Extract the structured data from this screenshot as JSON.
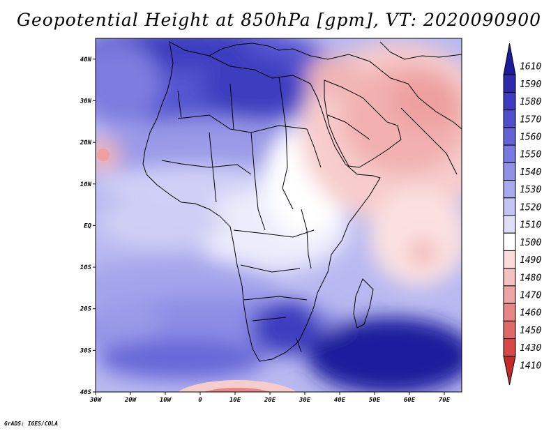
{
  "title": "Geopotential Height at 850hPa [gpm], VT: 2020090900",
  "credit": "GrADS: IGES/COLA",
  "map": {
    "lon_range": [
      -30,
      75
    ],
    "lat_range": [
      -40,
      45
    ],
    "lat_ticks": [
      "40N",
      "30N",
      "20N",
      "10N",
      "EQ",
      "10S",
      "20S",
      "30S",
      "40S"
    ],
    "lon_ticks": [
      "30W",
      "20W",
      "10W",
      "0",
      "10E",
      "20E",
      "30E",
      "40E",
      "50E",
      "60E",
      "70E"
    ]
  },
  "colorbar": {
    "levels": [
      "1610",
      "1590",
      "1580",
      "1570",
      "1560",
      "1550",
      "1540",
      "1530",
      "1520",
      "1510",
      "1500",
      "1490",
      "1480",
      "1470",
      "1460",
      "1450",
      "1430",
      "1410"
    ],
    "colors": [
      "#1e1a9c",
      "#2d2aae",
      "#3d3cbf",
      "#4f4fcc",
      "#6363d6",
      "#7979df",
      "#9191e7",
      "#a9a9ee",
      "#c4c4f4",
      "#dedef9",
      "#ffffff",
      "#fadada",
      "#f5c0c0",
      "#efa4a4",
      "#e88686",
      "#e06868",
      "#d74848",
      "#c42a2a"
    ]
  }
}
